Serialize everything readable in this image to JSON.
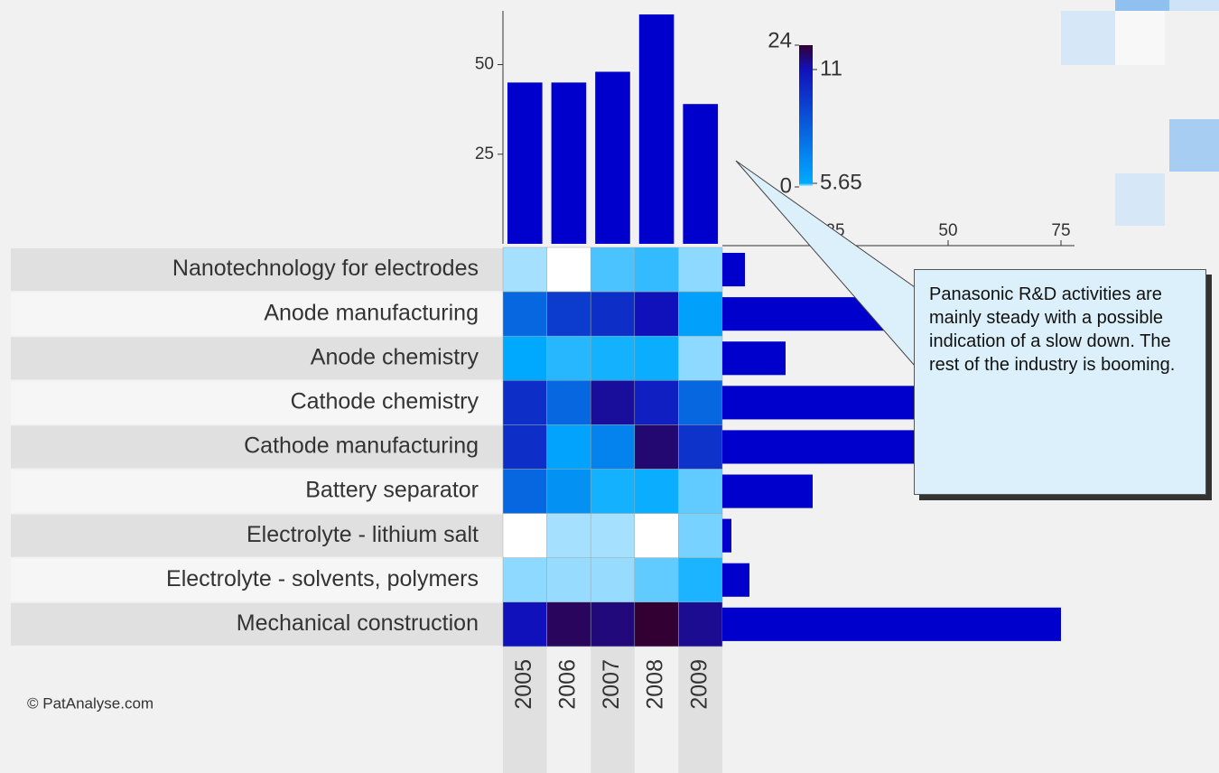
{
  "chart_data": {
    "type": "heatmap",
    "x_categories": [
      "2005",
      "2006",
      "2007",
      "2008",
      "2009"
    ],
    "y_categories": [
      "Nanotechnology for electrodes",
      "Anode manufacturing",
      "Anode chemistry",
      "Cathode chemistry",
      "Cathode manufacturing",
      "Battery separator",
      "Electrolyte - lithium salt",
      "Electrolyte - solvents, polymers",
      "Mechanical construction"
    ],
    "values": [
      [
        2,
        0,
        4,
        4.5,
        2.5
      ],
      [
        8,
        9.5,
        10,
        11,
        6
      ],
      [
        5.7,
        4.8,
        5.2,
        5.4,
        2.5
      ],
      [
        10,
        8,
        14,
        10.5,
        8
      ],
      [
        10,
        5.9,
        7,
        18,
        9.8
      ],
      [
        8,
        6.5,
        5.2,
        5.4,
        3.5
      ],
      [
        0,
        2,
        2,
        0,
        3
      ],
      [
        2.5,
        2.3,
        2.3,
        3.5,
        5
      ],
      [
        11,
        20,
        17,
        24,
        15
      ]
    ],
    "colorscale": {
      "ticks": [
        0,
        5.65,
        11,
        24
      ],
      "colors": [
        "#ffffff",
        "#00aaff",
        "#1111bb",
        "#330033"
      ]
    },
    "top_bars": {
      "type": "bar",
      "values": [
        45,
        45,
        48,
        64,
        39
      ],
      "color": "#0000cc",
      "ylim": [
        0,
        65
      ],
      "yticks": [
        25,
        50
      ]
    },
    "side_bars": {
      "type": "bar",
      "orientation": "horizontal",
      "values": [
        5,
        40,
        14,
        43,
        42.5,
        20,
        2,
        6,
        75
      ],
      "color": "#0000cc",
      "xlim": [
        0,
        78
      ],
      "xticks": [
        25,
        50,
        75
      ]
    },
    "annotation": "Panasonic R&D activities are mainly steady with a possible indication of a slow down. The rest of the industry is booming.",
    "source": "© PatAnalyse.com"
  }
}
